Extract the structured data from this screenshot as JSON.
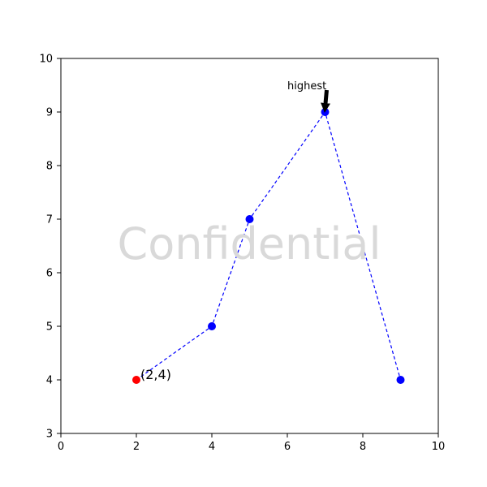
{
  "chart_data": {
    "type": "line",
    "x": [
      2,
      4,
      5,
      7,
      9
    ],
    "y": [
      4,
      5,
      7,
      9,
      4
    ],
    "xlim": [
      0,
      10
    ],
    "ylim": [
      3,
      10
    ],
    "xticks": [
      0,
      2,
      4,
      6,
      8,
      10
    ],
    "yticks": [
      3,
      4,
      5,
      6,
      7,
      8,
      9,
      10
    ],
    "xtick_labels": [
      "0",
      "2",
      "4",
      "6",
      "8",
      "10"
    ],
    "ytick_labels": [
      "3",
      "4",
      "5",
      "6",
      "7",
      "8",
      "9",
      "10"
    ],
    "line_style": "dashed",
    "line_color": "#0000ff",
    "marker_color": "#0000ff",
    "highlight_point": {
      "x": 2,
      "y": 4,
      "color": "#ff0000",
      "label": "(2,4)"
    },
    "annotation": {
      "text": "highest",
      "target_x": 7,
      "target_y": 9,
      "text_x": 6,
      "text_y": 9.5,
      "arrow_color": "#000000"
    },
    "watermark": "Confidential",
    "grid": false
  }
}
